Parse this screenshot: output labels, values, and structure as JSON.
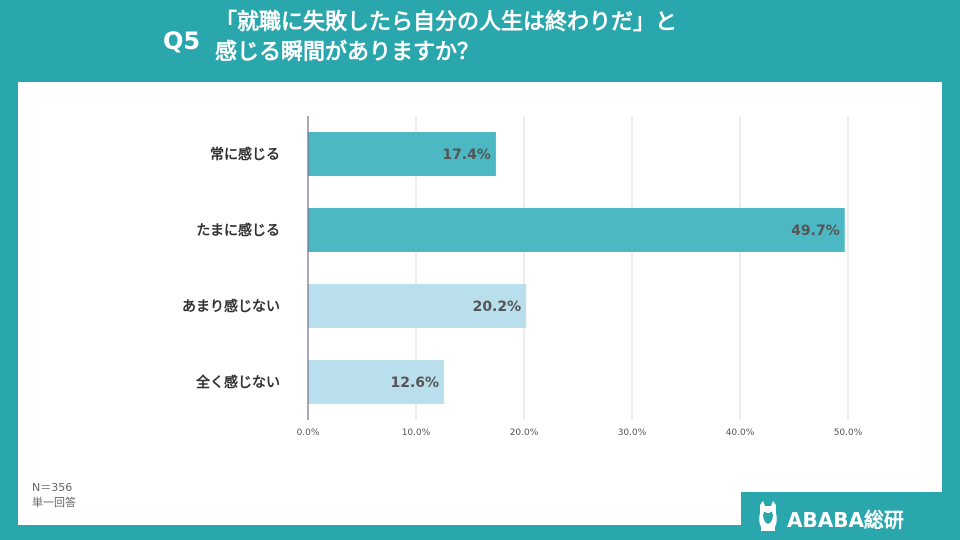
{
  "header": {
    "question_number": "Q5",
    "title_line1": "「就職に失敗したら自分の人生は終わりだ」と",
    "title_line2": "感じる瞬間がありますか？"
  },
  "footnote": {
    "sample": "N＝356",
    "answer_type": "単一回答"
  },
  "logo": {
    "text": "ABABA総研",
    "icon": "alpaca-icon"
  },
  "colors": {
    "background": "#2aa6ad",
    "bar_primary": "#4bb8c4",
    "bar_secondary": "#b9deec",
    "grid": "#d9d9d9",
    "axis": "#7a6b8a",
    "value_label": "#555555"
  },
  "chart_data": {
    "type": "bar",
    "orientation": "horizontal",
    "categories": [
      "常に感じる",
      "たまに感じる",
      "あまり感じない",
      "全く感じない"
    ],
    "values": [
      17.4,
      49.7,
      20.2,
      12.6
    ],
    "value_labels": [
      "17.4%",
      "49.7%",
      "20.2%",
      "12.6%"
    ],
    "bar_colors": [
      "#4bb8c4",
      "#4bb8c4",
      "#b9deec",
      "#b9deec"
    ],
    "xlim": [
      0,
      50
    ],
    "xticks": [
      0,
      10,
      20,
      30,
      40,
      50
    ],
    "xtick_labels": [
      "0.0%",
      "10.0%",
      "20.0%",
      "30.0%",
      "40.0%",
      "50.0%"
    ],
    "grid": true,
    "legend": "none"
  }
}
